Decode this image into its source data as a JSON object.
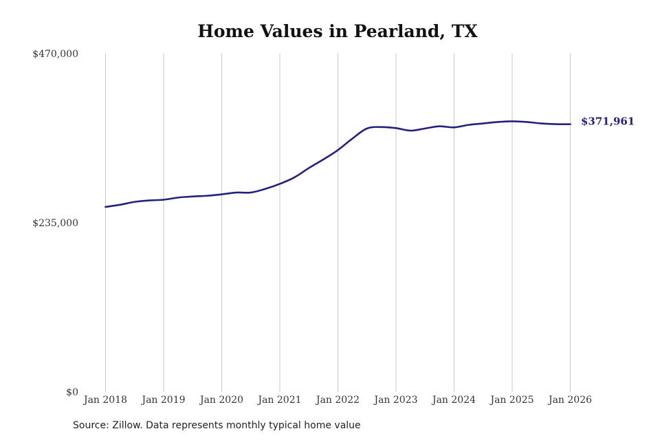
{
  "chart_data": {
    "type": "line",
    "title": "Home Values in Pearland, TX",
    "xlabel": "",
    "ylabel": "",
    "ylim": [
      0,
      470000
    ],
    "y_ticks": [
      {
        "value": 0,
        "label": "$0"
      },
      {
        "value": 235000,
        "label": "$235,000"
      },
      {
        "value": 470000,
        "label": "$470,000"
      }
    ],
    "x_ticks": [
      {
        "value": 2018,
        "label": "Jan 2018"
      },
      {
        "value": 2019,
        "label": "Jan 2019"
      },
      {
        "value": 2020,
        "label": "Jan 2020"
      },
      {
        "value": 2021,
        "label": "Jan 2021"
      },
      {
        "value": 2022,
        "label": "Jan 2022"
      },
      {
        "value": 2023,
        "label": "Jan 2023"
      },
      {
        "value": 2024,
        "label": "Jan 2024"
      },
      {
        "value": 2025,
        "label": "Jan 2025"
      },
      {
        "value": 2026,
        "label": "Jan 2026"
      }
    ],
    "grid": {
      "vertical": true,
      "horizontal": false
    },
    "series": [
      {
        "color": "#23207e",
        "points": [
          [
            2018.0,
            257000
          ],
          [
            2018.25,
            260000
          ],
          [
            2018.5,
            264000
          ],
          [
            2018.75,
            266000
          ],
          [
            2019.0,
            267000
          ],
          [
            2019.25,
            270000
          ],
          [
            2019.5,
            271500
          ],
          [
            2019.75,
            272500
          ],
          [
            2020.0,
            274500
          ],
          [
            2020.25,
            277000
          ],
          [
            2020.5,
            277000
          ],
          [
            2020.75,
            282000
          ],
          [
            2021.0,
            289000
          ],
          [
            2021.25,
            298000
          ],
          [
            2021.5,
            311000
          ],
          [
            2021.75,
            323000
          ],
          [
            2022.0,
            336000
          ],
          [
            2022.25,
            352000
          ],
          [
            2022.5,
            366000
          ],
          [
            2022.75,
            368000
          ],
          [
            2023.0,
            366500
          ],
          [
            2023.25,
            363000
          ],
          [
            2023.5,
            366000
          ],
          [
            2023.75,
            369000
          ],
          [
            2024.0,
            367500
          ],
          [
            2024.25,
            371000
          ],
          [
            2024.5,
            373000
          ],
          [
            2024.75,
            375000
          ],
          [
            2025.0,
            376000
          ],
          [
            2025.25,
            375000
          ],
          [
            2025.5,
            373000
          ],
          [
            2025.75,
            372000
          ],
          [
            2026.0,
            371961
          ]
        ]
      }
    ],
    "end_label": "$371,961"
  },
  "source_note": "Source: Zillow. Data represents monthly typical home value"
}
